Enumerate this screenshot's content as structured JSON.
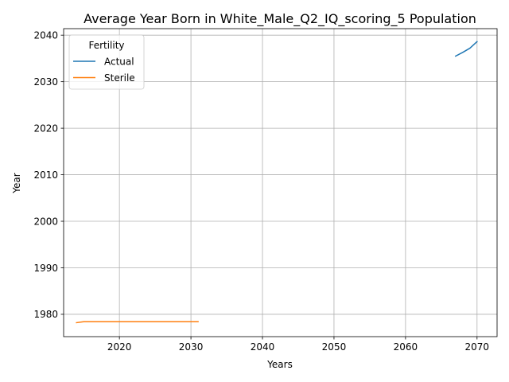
{
  "chart_data": {
    "type": "line",
    "title": "Average Year Born in White_Male_Q2_IQ_scoring_5 Population",
    "xlabel": "Years",
    "ylabel": "Year",
    "xlim": [
      2012.2,
      2072.8
    ],
    "ylim": [
      1975.2,
      2041.4
    ],
    "x_ticks": [
      2020,
      2030,
      2040,
      2050,
      2060,
      2070
    ],
    "y_ticks": [
      1980,
      1990,
      2000,
      2010,
      2020,
      2030,
      2040
    ],
    "grid": true,
    "legend": {
      "title": "Fertility",
      "placement": "upper-left"
    },
    "series": [
      {
        "name": "Actual",
        "color": "#1f77b4",
        "x": [
          2067,
          2068,
          2069,
          2070
        ],
        "y": [
          2035.5,
          2036.3,
          2037.2,
          2038.6
        ]
      },
      {
        "name": "Sterile",
        "color": "#ff7f0e",
        "x": [
          2014,
          2015,
          2016,
          2017,
          2018,
          2019,
          2020,
          2021,
          2022,
          2023,
          2024,
          2025,
          2026,
          2027,
          2028,
          2029,
          2030,
          2031
        ],
        "y": [
          1978.2,
          1978.4,
          1978.4,
          1978.4,
          1978.4,
          1978.4,
          1978.4,
          1978.4,
          1978.4,
          1978.4,
          1978.4,
          1978.4,
          1978.4,
          1978.4,
          1978.4,
          1978.4,
          1978.4,
          1978.4
        ]
      }
    ]
  }
}
